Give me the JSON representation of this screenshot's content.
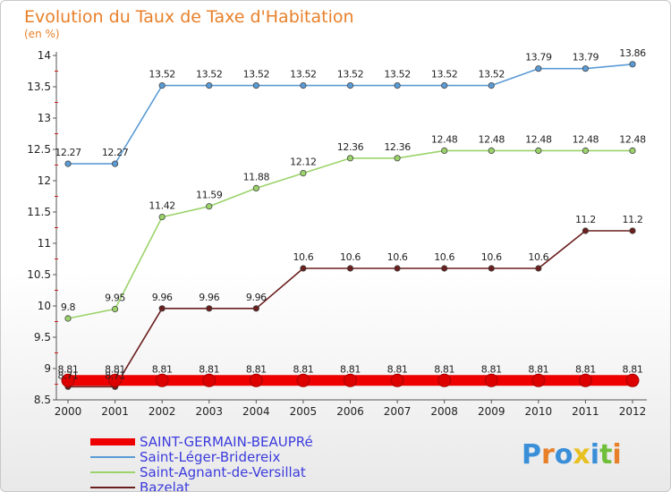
{
  "chart_data": {
    "type": "line",
    "title": "Evolution du Taux de Taxe d'Habitation",
    "subtitle": "(en %)",
    "x": [
      2000,
      2001,
      2002,
      2003,
      2004,
      2005,
      2006,
      2007,
      2008,
      2009,
      2010,
      2011,
      2012
    ],
    "ylim": [
      8.5,
      14
    ],
    "yticks": [
      8.5,
      9,
      9.5,
      10,
      10.5,
      11,
      11.5,
      12,
      12.5,
      13,
      13.5,
      14
    ],
    "grid": false,
    "legend_position": "bottom-left",
    "series": [
      {
        "name": "Saint-Léger-Bridereix",
        "color": "#5b9bd5",
        "values": [
          12.27,
          12.27,
          13.52,
          13.52,
          13.52,
          13.52,
          13.52,
          13.52,
          13.52,
          13.52,
          13.79,
          13.79,
          13.86
        ]
      },
      {
        "name": "Saint-Agnant-de-Versillat",
        "color": "#9bd36a",
        "values": [
          9.8,
          9.95,
          11.42,
          11.59,
          11.88,
          12.12,
          12.36,
          12.36,
          12.48,
          12.48,
          12.48,
          12.48,
          12.48
        ]
      },
      {
        "name": "Bazelat",
        "color": "#6b1e1e",
        "values": [
          8.71,
          8.71,
          9.96,
          9.96,
          9.96,
          10.6,
          10.6,
          10.6,
          10.6,
          10.6,
          10.6,
          11.2,
          11.2
        ],
        "labels": [
          "8.71",
          "8.71",
          "9.96",
          "9.96",
          "9.96",
          "10.6",
          "10.6",
          "10.6",
          "10.6",
          "10.6",
          "10.6",
          "11.2",
          "11.2"
        ]
      },
      {
        "name": "SAINT-GERMAIN-BEAUPRé",
        "color": "#ee0000",
        "values": [
          8.81,
          8.81,
          8.81,
          8.81,
          8.81,
          8.81,
          8.81,
          8.81,
          8.81,
          8.81,
          8.81,
          8.81,
          8.81
        ]
      }
    ],
    "legend": [
      "SAINT-GERMAIN-BEAUPRé",
      "Saint-Léger-Bridereix",
      "Saint-Agnant-de-Versillat",
      "Bazelat"
    ]
  },
  "branding": {
    "logo_text": "Proxiti"
  }
}
